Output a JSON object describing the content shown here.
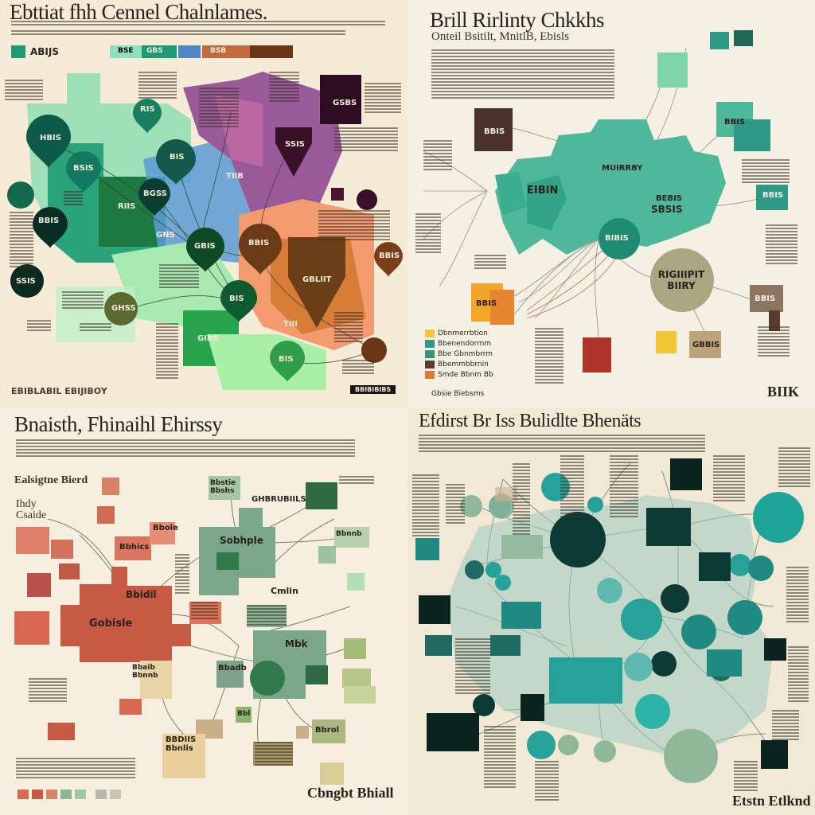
{
  "panels": {
    "p1": {
      "title": "Ebttiat fhh Cennel Chalnlames.",
      "legend": "ABIJS",
      "tabs": [
        "BSE",
        "GBS",
        "",
        "BSB",
        ""
      ],
      "labels": {
        "n1": "HBIS",
        "n2": "BSIS",
        "n3": "RIS",
        "n4": "BIS",
        "n5": "GSBS",
        "n6": "SSIS",
        "n7": "BGSS",
        "n8": "RIIS",
        "n9": "TIIB",
        "n10": "BBIS",
        "n11": "SSIS",
        "n12": "GNS",
        "n13": "GBIS",
        "n14": "BBIS",
        "n15": "GHSS",
        "n16": "BIS",
        "n17": "GIBS",
        "n18": "GBLIIT",
        "n19": "TIII",
        "n20": "BBIS",
        "n21": "BIS"
      },
      "footer": "EBIBLABIL EBIJIBOY",
      "badge": "BBIBIBIBS"
    },
    "p2": {
      "title": "Brill Rirlinty Chkkhs",
      "subtitle": "Onteil Bsitilt, MnitlB, Ebisls",
      "labels": {
        "n1": "BBIS",
        "n2": "EIBIN",
        "n3": "MUIRRBY",
        "n4": "BEBIS",
        "n5": "SBSIS",
        "n6": "BIBIS",
        "n7": "RIGIIIPIT BIIRY",
        "n8": "BBIS",
        "n9": "GBBIS",
        "n10": "BBIS",
        "n11": "BBIS",
        "n12": "BBIS"
      },
      "legend": [
        "Dbnmerrbtion",
        "Bbenendorrnm",
        "Bbe Gbnmbrrm",
        "Bbemmbbrnin",
        "Smde Bbnm Bb"
      ],
      "legend_colors": [
        "#f3c63a",
        "#2e9a86",
        "#3f8f7d",
        "#5a3c2e",
        "#e07a2f"
      ],
      "footer": "Gbsie Biebsms",
      "mark": "BIIK"
    },
    "p3": {
      "title": "Bnaisth, Fhinaihl Ehirssy",
      "section": "Ealsigtne Bierd",
      "side": [
        "Ihdy",
        "Csaide"
      ],
      "labels": {
        "n1": "Gobisle",
        "n2": "Bbidil",
        "n3": "Bbhics",
        "n4": "Bbole",
        "n5": "Sobhple",
        "n6": "GHBRUBIILS",
        "n7": "Mbk",
        "n8": "Bbadb",
        "n9": "Bbrol",
        "n10": "BBDIIS Bbnlis",
        "n11": "Bbl",
        "n12": "Bbaib Bbnnb",
        "n13": "Bbnnb",
        "n14": "Cmlin",
        "n15": "Bbstie Bbshs"
      },
      "signature": "Cbngbt Bhiall"
    },
    "p4": {
      "title": "Efdirst Br Iss Bulidlte Bhenäts",
      "signature": "Etstn Etlknd"
    }
  }
}
